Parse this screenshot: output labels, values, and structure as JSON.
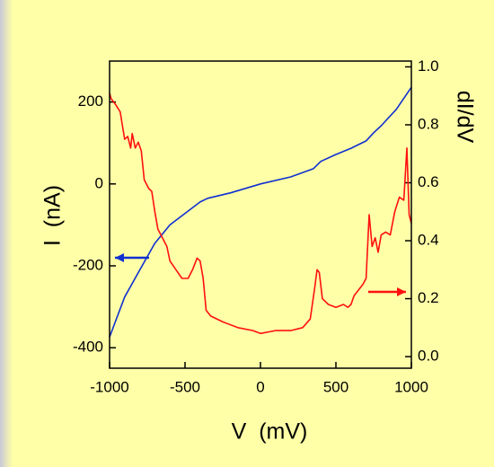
{
  "chart_data": {
    "type": "line",
    "xlabel": "V  (mV)",
    "ylabel": "I  (nA)",
    "y2label": "dI/dV",
    "xlim": [
      -1000,
      1000
    ],
    "ylim": [
      -450,
      300
    ],
    "y2lim": [
      -0.04,
      1.02
    ],
    "xticks": [
      -1000,
      -500,
      0,
      500,
      1000
    ],
    "yticks": [
      -400,
      -200,
      0,
      200
    ],
    "y2ticks": [
      {
        "value": 0,
        "label": "0.0"
      },
      0.2,
      0.4,
      0.6,
      0.8,
      {
        "value": 1,
        "label": "1.0"
      }
    ],
    "series": [
      {
        "name": "I",
        "color": "#1030d0",
        "axis": "y",
        "x": [
          -1000,
          -900,
          -800,
          -700,
          -600,
          -500,
          -400,
          -350,
          -200,
          0,
          200,
          350,
          400,
          500,
          600,
          700,
          750,
          800,
          900,
          1000
        ],
        "values": [
          -374,
          -276,
          -210,
          -145,
          -100,
          -72,
          -44,
          -35,
          -22,
          0,
          17,
          37,
          55,
          72,
          87,
          105,
          125,
          142,
          182,
          236
        ]
      },
      {
        "name": "dI/dV",
        "color": "#ff1010",
        "axis": "y2",
        "x": [
          -1000,
          -990,
          -960,
          -930,
          -900,
          -880,
          -860,
          -850,
          -830,
          -810,
          -790,
          -770,
          -740,
          -720,
          -700,
          -680,
          -650,
          -620,
          -600,
          -560,
          -520,
          -480,
          -450,
          -420,
          -400,
          -380,
          -360,
          -330,
          -250,
          -150,
          -50,
          0,
          100,
          200,
          280,
          330,
          360,
          375,
          390,
          410,
          450,
          500,
          550,
          580,
          600,
          620,
          650,
          680,
          700,
          720,
          740,
          760,
          780,
          800,
          830,
          860,
          890,
          920,
          950,
          970,
          985,
          1000
        ],
        "values": [
          0.91,
          0.89,
          0.87,
          0.845,
          0.75,
          0.76,
          0.72,
          0.77,
          0.72,
          0.74,
          0.71,
          0.61,
          0.58,
          0.57,
          0.5,
          0.44,
          0.41,
          0.38,
          0.33,
          0.3,
          0.27,
          0.27,
          0.3,
          0.34,
          0.33,
          0.27,
          0.16,
          0.14,
          0.12,
          0.1,
          0.09,
          0.08,
          0.09,
          0.09,
          0.1,
          0.13,
          0.24,
          0.3,
          0.29,
          0.2,
          0.18,
          0.17,
          0.18,
          0.17,
          0.18,
          0.21,
          0.23,
          0.25,
          0.27,
          0.49,
          0.38,
          0.41,
          0.36,
          0.42,
          0.43,
          0.42,
          0.5,
          0.55,
          0.54,
          0.72,
          0.49,
          0.46
        ]
      }
    ]
  }
}
